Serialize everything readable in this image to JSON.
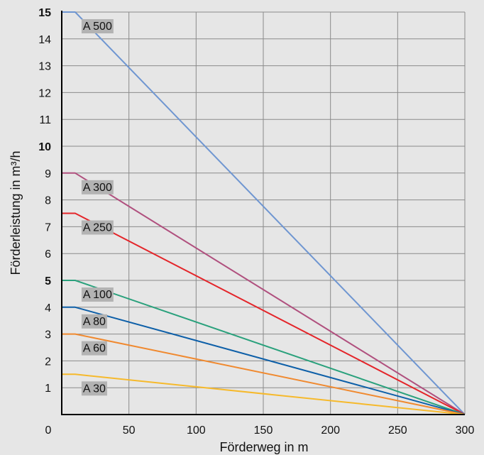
{
  "chart_data": {
    "type": "line",
    "xlabel": "Förderweg in m",
    "ylabel": "Förderleistung in m³/h",
    "xlim": [
      0,
      300
    ],
    "ylim": [
      0,
      15
    ],
    "x_ticks": [
      {
        "value": 0,
        "label": "0"
      },
      {
        "value": 50,
        "label": "50"
      },
      {
        "value": 100,
        "label": "100"
      },
      {
        "value": 150,
        "label": "150"
      },
      {
        "value": 200,
        "label": "200"
      },
      {
        "value": 250,
        "label": "250"
      },
      {
        "value": 300,
        "label": "300"
      }
    ],
    "y_ticks": [
      {
        "value": 1,
        "label": "1",
        "bold": false
      },
      {
        "value": 2,
        "label": "2",
        "bold": false
      },
      {
        "value": 3,
        "label": "3",
        "bold": false
      },
      {
        "value": 4,
        "label": "4",
        "bold": false
      },
      {
        "value": 5,
        "label": "5",
        "bold": true
      },
      {
        "value": 6,
        "label": "6",
        "bold": false
      },
      {
        "value": 7,
        "label": "7",
        "bold": false
      },
      {
        "value": 8,
        "label": "8",
        "bold": false
      },
      {
        "value": 9,
        "label": "9",
        "bold": false
      },
      {
        "value": 10,
        "label": "10",
        "bold": true
      },
      {
        "value": 11,
        "label": "11",
        "bold": false
      },
      {
        "value": 12,
        "label": "12",
        "bold": false
      },
      {
        "value": 13,
        "label": "13",
        "bold": false
      },
      {
        "value": 14,
        "label": "14",
        "bold": false
      },
      {
        "value": 15,
        "label": "15",
        "bold": true
      }
    ],
    "grid": true,
    "colors": {
      "background": "#e6e6e6",
      "grid": "#8a8a8a",
      "axis": "#000000",
      "label_box": "#b3b3b3"
    },
    "series": [
      {
        "name": "A 500",
        "color": "#6f96d1",
        "points": [
          [
            0,
            15
          ],
          [
            10,
            15
          ],
          [
            300,
            0
          ]
        ]
      },
      {
        "name": "A 300",
        "color": "#b0507e",
        "points": [
          [
            0,
            9
          ],
          [
            10,
            9
          ],
          [
            300,
            0
          ]
        ]
      },
      {
        "name": "A 250",
        "color": "#e4252a",
        "points": [
          [
            0,
            7.5
          ],
          [
            10,
            7.5
          ],
          [
            300,
            0
          ]
        ]
      },
      {
        "name": "A 100",
        "color": "#2aa17c",
        "points": [
          [
            0,
            5
          ],
          [
            10,
            5
          ],
          [
            300,
            0
          ]
        ]
      },
      {
        "name": "A 80",
        "color": "#0d5fa8",
        "points": [
          [
            0,
            4
          ],
          [
            10,
            4
          ],
          [
            300,
            0
          ]
        ]
      },
      {
        "name": "A 60",
        "color": "#f0892f",
        "points": [
          [
            0,
            3
          ],
          [
            10,
            3
          ],
          [
            300,
            0
          ]
        ]
      },
      {
        "name": "A 30",
        "color": "#f6b92b",
        "points": [
          [
            0,
            1.5
          ],
          [
            10,
            1.5
          ],
          [
            300,
            0
          ]
        ]
      }
    ]
  }
}
